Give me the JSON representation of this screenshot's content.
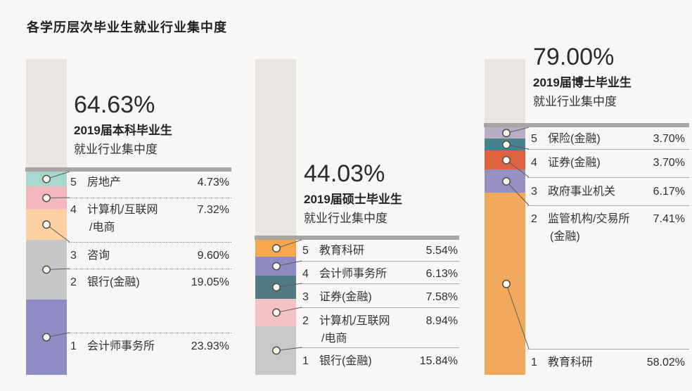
{
  "title": "各学历层次毕业生就业行业集中度",
  "colors": {
    "background": "#f8f7f5",
    "bar_remainder": "#e9e6e2",
    "divider": "#a7a6a5",
    "marker_fill": "#fffdf3",
    "marker_stroke": "#4d4d4d"
  },
  "chart_data": [
    {
      "type": "bar",
      "stacked": true,
      "orientation": "vertical",
      "total_display": "64.63%",
      "total_value": 64.63,
      "cohort": "2019届本科毕业生",
      "subtitle": "就业行业集中度",
      "segments": [
        {
          "rank": "5",
          "label": "房地产",
          "value": 4.73,
          "display": "4.73%",
          "color": "#a7d7ce"
        },
        {
          "rank": "4",
          "label": "计算机/互联网",
          "label2": "/电商",
          "value": 7.32,
          "display": "7.32%",
          "color": "#f3b7bd"
        },
        {
          "rank": "3",
          "label": "咨询",
          "value": 9.6,
          "display": "9.60%",
          "color": "#fcd0a0"
        },
        {
          "rank": "2",
          "label": "银行(金融)",
          "value": 19.05,
          "display": "19.05%",
          "color": "#c7c6c8"
        },
        {
          "rank": "1",
          "label": "会计师事务所",
          "value": 23.93,
          "display": "23.93%",
          "color": "#8f8bc5"
        }
      ]
    },
    {
      "type": "bar",
      "stacked": true,
      "orientation": "vertical",
      "total_display": "44.03%",
      "total_value": 44.03,
      "cohort": "2019届硕士毕业生",
      "subtitle": "就业行业集中度",
      "segments": [
        {
          "rank": "5",
          "label": "教育科研",
          "value": 5.54,
          "display": "5.54%",
          "color": "#f5a74e"
        },
        {
          "rank": "4",
          "label": "会计师事务所",
          "value": 6.13,
          "display": "6.13%",
          "color": "#8d89c1"
        },
        {
          "rank": "3",
          "label": "证券(金融)",
          "value": 7.58,
          "display": "7.58%",
          "color": "#517b83"
        },
        {
          "rank": "2",
          "label": "计算机/互联网",
          "label2": "/电商",
          "value": 8.94,
          "display": "8.94%",
          "color": "#f3c3c4"
        },
        {
          "rank": "1",
          "label": "银行(金融)",
          "value": 15.84,
          "display": "15.84%",
          "color": "#c8c7c9"
        }
      ]
    },
    {
      "type": "bar",
      "stacked": true,
      "orientation": "vertical",
      "total_display": "79.00%",
      "total_value": 79.0,
      "cohort": "2019届博士毕业生",
      "subtitle": "就业行业集中度",
      "segments": [
        {
          "rank": "5",
          "label": "保险(金融)",
          "value": 3.7,
          "display": "3.70%",
          "color": "#b7adc5"
        },
        {
          "rank": "4",
          "label": "证券(金融)",
          "value": 3.7,
          "display": "3.70%",
          "color": "#48818f"
        },
        {
          "rank": "3",
          "label": "政府事业机关",
          "value": 6.17,
          "display": "6.17%",
          "color": "#df6340"
        },
        {
          "rank": "2",
          "label": "监管机构/交易所",
          "label2": "(金融)",
          "value": 7.41,
          "display": "7.41%",
          "color": "#998fc0"
        },
        {
          "rank": "1",
          "label": "教育科研",
          "value": 58.02,
          "display": "58.02%",
          "color": "#f3a95c"
        }
      ]
    }
  ]
}
